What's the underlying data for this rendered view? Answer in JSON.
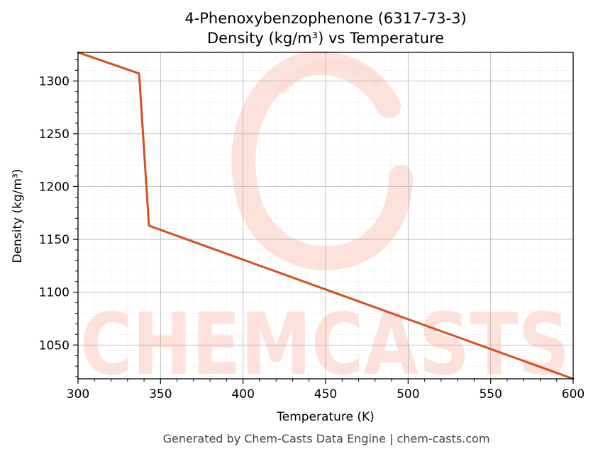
{
  "chart_data": {
    "type": "line",
    "title_line1": "4-Phenoxybenzophenone (6317-73-3)",
    "title_line2": "Density (kg/m³) vs Temperature",
    "xlabel": "Temperature (K)",
    "ylabel": "Density (kg/m³)",
    "xlim": [
      300,
      600
    ],
    "ylim": [
      1018,
      1327
    ],
    "x_ticks": [
      300,
      350,
      400,
      450,
      500,
      550,
      600
    ],
    "y_ticks": [
      1050,
      1100,
      1150,
      1200,
      1250,
      1300
    ],
    "grid": true,
    "series": [
      {
        "color": "#d4511f",
        "x": [
          300,
          337,
          343,
          600
        ],
        "y": [
          1327,
          1307,
          1163,
          1018
        ]
      }
    ],
    "watermark": "CHEMCASTS",
    "watermark_color": "#fddcd4"
  },
  "footer": "Generated by Chem-Casts Data Engine | chem-casts.com"
}
